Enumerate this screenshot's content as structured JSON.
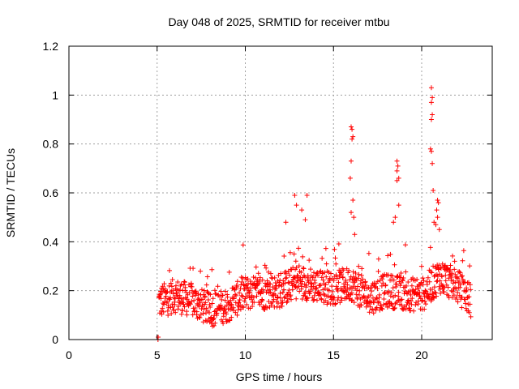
{
  "chart_data": {
    "type": "scatter",
    "title": "Day 048 of 2025, SRMTID for receiver mtbu",
    "xlabel": "GPS time / hours",
    "ylabel": "SRMTID / TECUs",
    "xlim": [
      0,
      24
    ],
    "ylim": [
      0,
      1.2
    ],
    "x_ticks": [
      0,
      5,
      10,
      15,
      20
    ],
    "y_ticks": [
      0,
      0.2,
      0.4,
      0.6,
      0.8,
      1,
      1.2
    ],
    "x_tick_labels": [
      "0",
      "5",
      "10",
      "15",
      "20"
    ],
    "y_tick_labels": [
      "0",
      "0.2",
      "0.4",
      "0.6",
      "0.8",
      "1",
      "1.2"
    ],
    "grid": true,
    "marker": "+",
    "series": [
      {
        "name": "SRMTID",
        "color": "#ff0000",
        "x_range": [
          5.0,
          22.8
        ],
        "x_step_hours": 0.0167,
        "baseline_profile": [
          [
            5.0,
            0.15
          ],
          [
            6.0,
            0.18
          ],
          [
            7.0,
            0.16
          ],
          [
            8.0,
            0.12
          ],
          [
            9.0,
            0.14
          ],
          [
            10.0,
            0.19
          ],
          [
            11.0,
            0.19
          ],
          [
            12.0,
            0.2
          ],
          [
            13.0,
            0.24
          ],
          [
            14.0,
            0.22
          ],
          [
            15.0,
            0.21
          ],
          [
            16.0,
            0.23
          ],
          [
            17.0,
            0.17
          ],
          [
            18.0,
            0.2
          ],
          [
            19.0,
            0.19
          ],
          [
            20.0,
            0.18
          ],
          [
            21.0,
            0.26
          ],
          [
            22.0,
            0.22
          ],
          [
            22.8,
            0.16
          ]
        ],
        "highlights": [
          {
            "x": 5.05,
            "y": 0.0
          },
          {
            "x": 5.06,
            "y": 0.01
          },
          {
            "x": 12.8,
            "y": 0.59
          },
          {
            "x": 12.9,
            "y": 0.55
          },
          {
            "x": 13.2,
            "y": 0.53
          },
          {
            "x": 13.5,
            "y": 0.59
          },
          {
            "x": 13.4,
            "y": 0.49
          },
          {
            "x": 12.3,
            "y": 0.48
          },
          {
            "x": 16.0,
            "y": 0.87
          },
          {
            "x": 16.05,
            "y": 0.86
          },
          {
            "x": 16.1,
            "y": 0.83
          },
          {
            "x": 16.05,
            "y": 0.82
          },
          {
            "x": 16.0,
            "y": 0.73
          },
          {
            "x": 15.95,
            "y": 0.66
          },
          {
            "x": 16.1,
            "y": 0.57
          },
          {
            "x": 16.0,
            "y": 0.52
          },
          {
            "x": 16.15,
            "y": 0.5
          },
          {
            "x": 16.2,
            "y": 0.43
          },
          {
            "x": 18.6,
            "y": 0.73
          },
          {
            "x": 18.65,
            "y": 0.71
          },
          {
            "x": 18.6,
            "y": 0.69
          },
          {
            "x": 18.7,
            "y": 0.66
          },
          {
            "x": 18.6,
            "y": 0.65
          },
          {
            "x": 18.7,
            "y": 0.55
          },
          {
            "x": 18.5,
            "y": 0.5
          },
          {
            "x": 18.4,
            "y": 0.48
          },
          {
            "x": 20.55,
            "y": 1.03
          },
          {
            "x": 20.6,
            "y": 0.99
          },
          {
            "x": 20.55,
            "y": 0.97
          },
          {
            "x": 20.6,
            "y": 0.92
          },
          {
            "x": 20.55,
            "y": 0.9
          },
          {
            "x": 20.5,
            "y": 0.78
          },
          {
            "x": 20.55,
            "y": 0.77
          },
          {
            "x": 20.6,
            "y": 0.72
          },
          {
            "x": 20.65,
            "y": 0.61
          },
          {
            "x": 20.9,
            "y": 0.57
          },
          {
            "x": 20.95,
            "y": 0.56
          },
          {
            "x": 20.85,
            "y": 0.53
          },
          {
            "x": 20.9,
            "y": 0.5
          },
          {
            "x": 20.7,
            "y": 0.48
          },
          {
            "x": 20.8,
            "y": 0.47
          },
          {
            "x": 21.0,
            "y": 0.45
          }
        ]
      }
    ]
  }
}
